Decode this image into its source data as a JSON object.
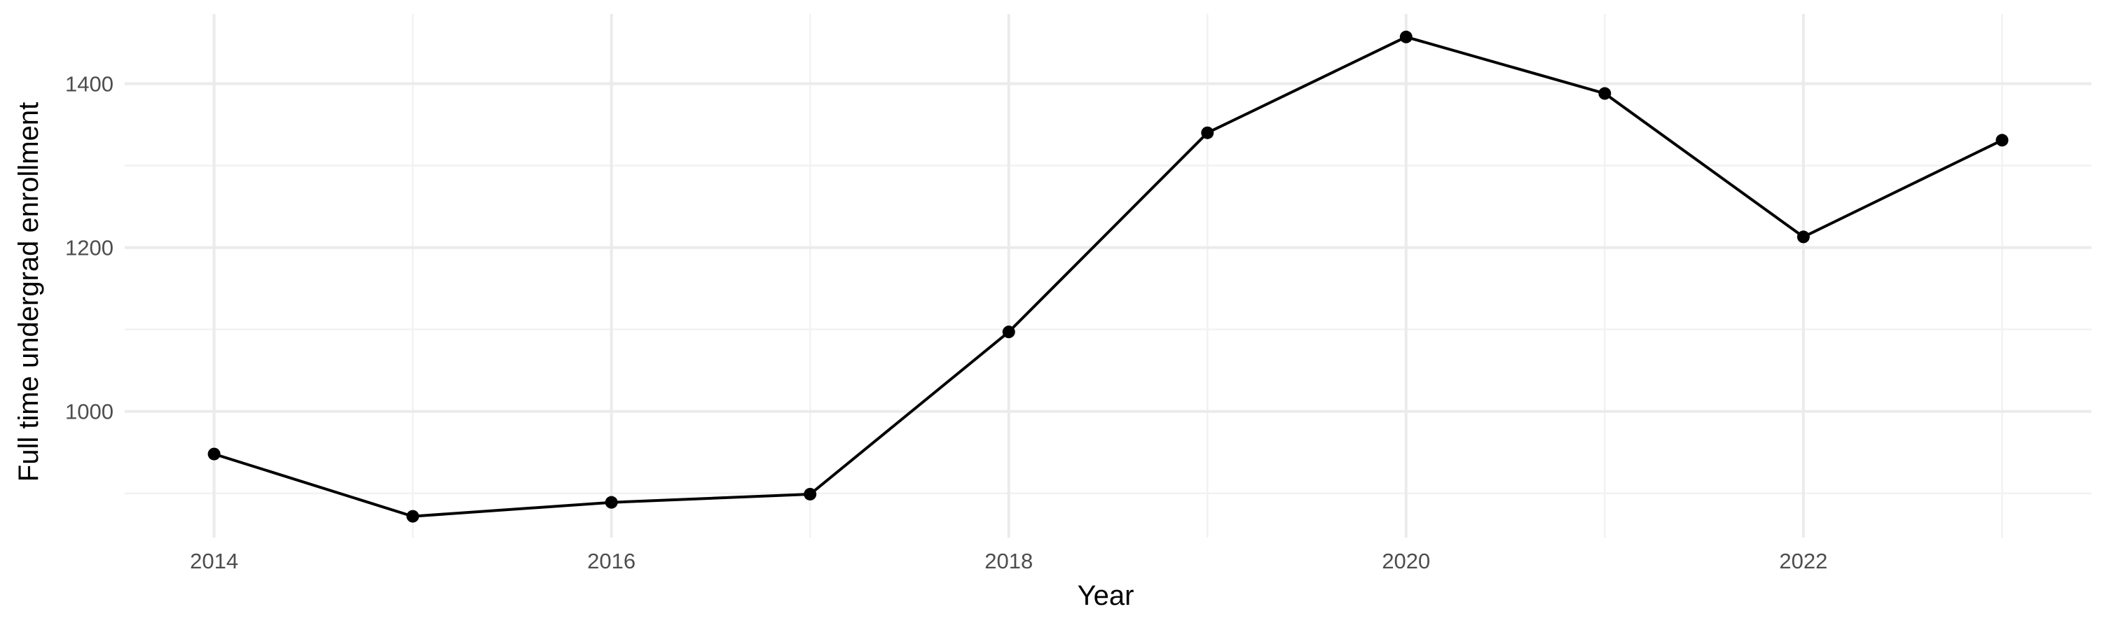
{
  "chart_data": {
    "type": "line",
    "title": "",
    "xlabel": "Year",
    "ylabel": "Full time undergrad enrollment",
    "x": [
      2014,
      2015,
      2016,
      2017,
      2018,
      2019,
      2020,
      2021,
      2022,
      2023
    ],
    "series": [
      {
        "values": [
          948,
          872,
          889,
          899,
          1097,
          1340,
          1457,
          1388,
          1213,
          1331
        ]
      }
    ],
    "xlim": [
      2013.55,
      2023.45
    ],
    "ylim": [
      846,
      1485
    ],
    "x_ticks": [
      2014,
      2016,
      2018,
      2020,
      2022
    ],
    "x_tick_labels": [
      "2014",
      "2016",
      "2018",
      "2020",
      "2022"
    ],
    "y_ticks": [
      1000,
      1200,
      1400
    ],
    "y_tick_labels": [
      "1000",
      "1200",
      "1400"
    ],
    "x_minor_ticks": [
      2015,
      2017,
      2019,
      2021,
      2023
    ],
    "y_minor_ticks": [
      900,
      1100,
      1300
    ],
    "grid": true,
    "legend": "none",
    "colors": {
      "line": "#000000",
      "point": "#000000",
      "grid_major": "#ebebeb",
      "grid_minor": "#f2f2f2",
      "tick_text": "#4d4d4d"
    }
  }
}
